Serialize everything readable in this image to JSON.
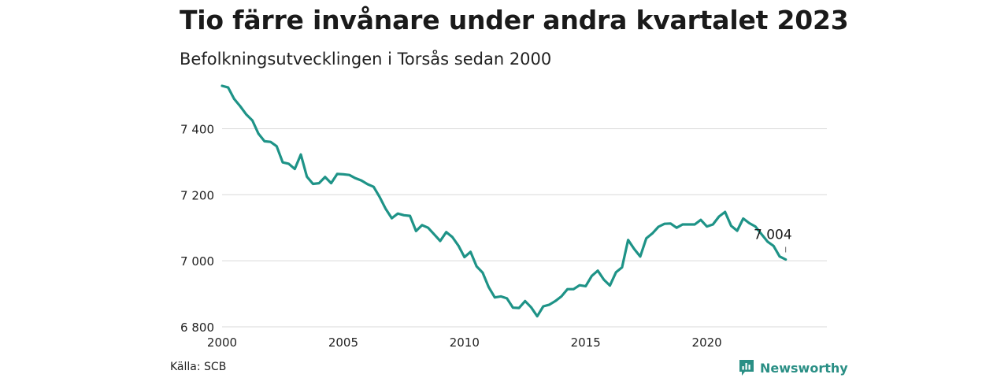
{
  "header": {
    "title": "Tio färre invånare under andra kvartalet 2023",
    "subtitle": "Befolkningsutvecklingen i Torsås sedan 2000"
  },
  "footer": {
    "source": "Källa: SCB",
    "brand": "Newsworthy"
  },
  "colors": {
    "line": "#1e9387",
    "grid": "#d9d9d9",
    "brand": "#2a8f85"
  },
  "chart_data": {
    "type": "line",
    "title": "Tio färre invånare under andra kvartalet 2023",
    "subtitle": "Befolkningsutvecklingen i Torsås sedan 2000",
    "xlabel": "",
    "ylabel": "",
    "xlim": [
      2000,
      2024.95
    ],
    "ylim": [
      6800,
      7580
    ],
    "grid": true,
    "x_ticks": [
      2000,
      2005,
      2010,
      2015,
      2020
    ],
    "x_tick_labels": [
      "2000",
      "2005",
      "2010",
      "2015",
      "2020"
    ],
    "y_ticks": [
      6800,
      7000,
      7200,
      7400
    ],
    "y_tick_labels": [
      "6 800",
      "7 000",
      "7 200",
      "7 400"
    ],
    "annotation": {
      "text": "7 004",
      "x": 2023.25,
      "y": 7004
    },
    "x": [
      2000.0,
      2000.25,
      2000.5,
      2000.75,
      2001.0,
      2001.25,
      2001.5,
      2001.75,
      2002.0,
      2002.25,
      2002.5,
      2002.75,
      2003.0,
      2003.25,
      2003.5,
      2003.75,
      2004.0,
      2004.25,
      2004.5,
      2004.75,
      2005.0,
      2005.25,
      2005.5,
      2005.75,
      2006.0,
      2006.25,
      2006.5,
      2006.75,
      2007.0,
      2007.25,
      2007.5,
      2007.75,
      2008.0,
      2008.25,
      2008.5,
      2008.75,
      2009.0,
      2009.25,
      2009.5,
      2009.75,
      2010.0,
      2010.25,
      2010.5,
      2010.75,
      2011.0,
      2011.25,
      2011.5,
      2011.75,
      2012.0,
      2012.25,
      2012.5,
      2012.75,
      2013.0,
      2013.25,
      2013.5,
      2013.75,
      2014.0,
      2014.25,
      2014.5,
      2014.75,
      2015.0,
      2015.25,
      2015.5,
      2015.75,
      2016.0,
      2016.25,
      2016.5,
      2016.75,
      2017.0,
      2017.25,
      2017.5,
      2017.75,
      2018.0,
      2018.25,
      2018.5,
      2018.75,
      2019.0,
      2019.25,
      2019.5,
      2019.75,
      2020.0,
      2020.25,
      2020.5,
      2020.75,
      2021.0,
      2021.25,
      2021.5,
      2021.75,
      2022.0,
      2022.25,
      2022.5,
      2022.75,
      2023.0,
      2023.25
    ],
    "series": [
      {
        "values": [
          7530,
          7525,
          7490,
          7468,
          7443,
          7425,
          7385,
          7362,
          7360,
          7347,
          7298,
          7294,
          7278,
          7322,
          7255,
          7233,
          7235,
          7254,
          7235,
          7263,
          7262,
          7260,
          7250,
          7243,
          7232,
          7224,
          7193,
          7157,
          7129,
          7143,
          7138,
          7136,
          7090,
          7108,
          7100,
          7080,
          7060,
          7087,
          7072,
          7046,
          7011,
          7027,
          6983,
          6964,
          6920,
          6889,
          6892,
          6886,
          6858,
          6857,
          6878,
          6859,
          6832,
          6862,
          6867,
          6878,
          6892,
          6914,
          6914,
          6926,
          6923,
          6954,
          6970,
          6943,
          6925,
          6965,
          6980,
          7063,
          7036,
          7013,
          7068,
          7083,
          7103,
          7112,
          7113,
          7100,
          7110,
          7110,
          7110,
          7124,
          7104,
          7110,
          7134,
          7148,
          7106,
          7091,
          7128,
          7114,
          7104,
          7081,
          7058,
          7045,
          7013,
          7004
        ]
      }
    ]
  }
}
